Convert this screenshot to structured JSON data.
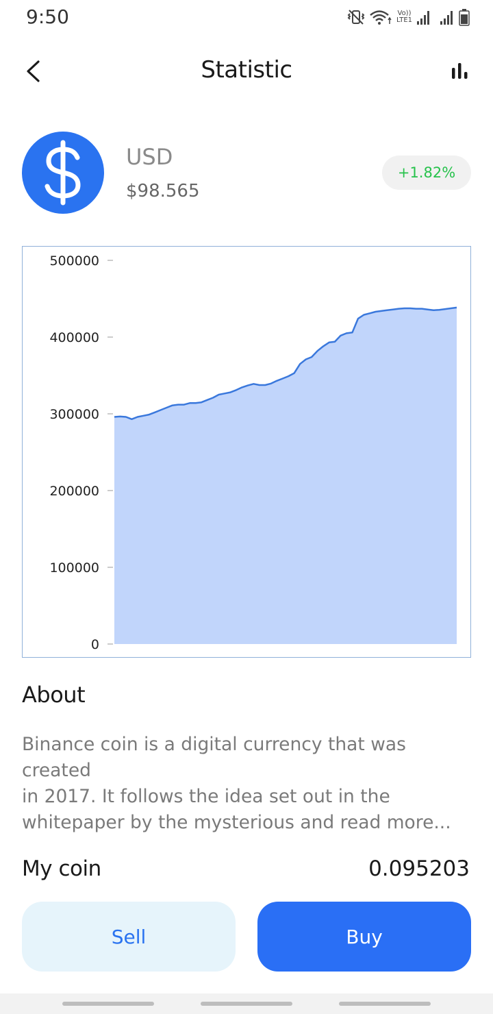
{
  "status_bar": {
    "time": "9:50",
    "lte_label_top": "Vo))",
    "lte_label_bottom": "LTE1"
  },
  "header": {
    "title": "Statistic",
    "back_icon": "chevron-left-icon",
    "stats_icon": "bar-chart-icon"
  },
  "coin": {
    "symbol_icon": "dollar-sign-icon",
    "name": "USD",
    "price": "$98.565",
    "change": "+1.82%",
    "accent_color": "#2a73f0",
    "change_color": "#27c24c"
  },
  "chart_data": {
    "type": "area",
    "title": "",
    "xlabel": "",
    "ylabel": "",
    "ylim": [
      0,
      500000
    ],
    "yticks": [
      0,
      100000,
      200000,
      300000,
      400000,
      500000
    ],
    "ytick_labels": [
      "0",
      "100000",
      "200000",
      "300000",
      "400000",
      "500000"
    ],
    "grid": false,
    "line_color": "#3a78dc",
    "fill_color": "#c1d5fb",
    "values": [
      296000,
      296500,
      296000,
      293000,
      296000,
      297500,
      299000,
      302000,
      305000,
      308000,
      311000,
      312000,
      312000,
      314000,
      314000,
      315000,
      318000,
      321000,
      325000,
      326500,
      328000,
      331000,
      334500,
      337000,
      339000,
      337500,
      337500,
      339500,
      343000,
      346000,
      349000,
      353000,
      365000,
      371000,
      374000,
      382000,
      388000,
      393000,
      394000,
      402000,
      405000,
      406000,
      424000,
      429000,
      431000,
      433000,
      434000,
      435000,
      436000,
      437000,
      437500,
      437500,
      437000,
      437000,
      436000,
      435000,
      435500,
      436500,
      437500,
      438500
    ]
  },
  "about": {
    "title": "About",
    "text": "Binance coin is a digital currency that was created\nin 2017. It follows the idea set out  in the\nwhitepaper by the mysterious and read more..."
  },
  "holdings": {
    "label": "My coin",
    "value": "0.095203"
  },
  "actions": {
    "sell_label": "Sell",
    "buy_label": "Buy"
  }
}
